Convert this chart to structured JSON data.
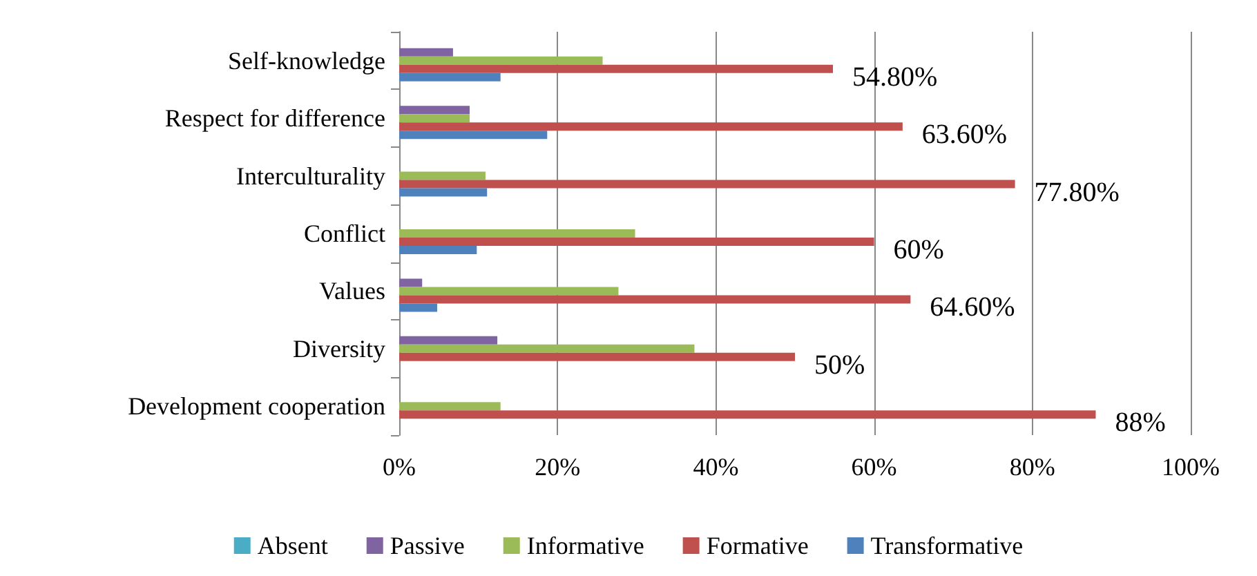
{
  "chart_data": {
    "type": "bar",
    "orientation": "horizontal",
    "categories": [
      "Self-knowledge",
      "Respect for difference",
      "Interculturality",
      "Conflict",
      "Values",
      "Diversity",
      "Development cooperation"
    ],
    "series": [
      {
        "name": "Absent",
        "color": "#4bacc6",
        "values": [
          0,
          0,
          0,
          0,
          0,
          0,
          0
        ]
      },
      {
        "name": "Passive",
        "color": "#8064a2",
        "values": [
          6.8,
          8.9,
          0,
          0,
          2.9,
          12.4,
          0
        ]
      },
      {
        "name": "Informative",
        "color": "#9bbb59",
        "values": [
          25.7,
          8.9,
          10.9,
          29.8,
          27.7,
          37.3,
          12.8
        ]
      },
      {
        "name": "Formative",
        "color": "#c0504d",
        "values": [
          54.8,
          63.6,
          77.8,
          60,
          64.6,
          50,
          88
        ],
        "value_labels": [
          "54.80%",
          "63.60%",
          "77.80%",
          "60%",
          "64.60%",
          "50%",
          "88%"
        ]
      },
      {
        "name": "Transformative",
        "color": "#4f81bd",
        "values": [
          12.8,
          18.7,
          11.1,
          9.8,
          4.8,
          0,
          0
        ]
      }
    ],
    "xlim": [
      0,
      100
    ],
    "xticks": [
      {
        "value": 0,
        "label": "0%"
      },
      {
        "value": 20,
        "label": "20%"
      },
      {
        "value": 40,
        "label": "40%"
      },
      {
        "value": 60,
        "label": "60%"
      },
      {
        "value": 80,
        "label": "80%"
      },
      {
        "value": 100,
        "label": "100%"
      }
    ],
    "grid": "x",
    "legend": "bottom"
  }
}
